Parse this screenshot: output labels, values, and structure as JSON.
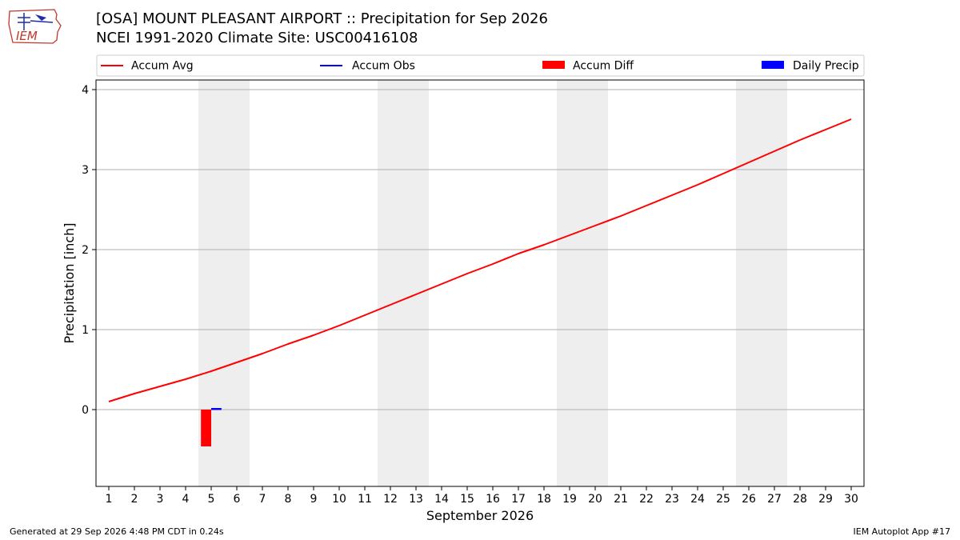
{
  "header": {
    "title_line1": "[OSA] MOUNT PLEASANT AIRPORT :: Precipitation for Sep 2026",
    "title_line2": "NCEI 1991-2020 Climate Site: USC00416108",
    "logo_text": "IEM"
  },
  "footer": {
    "generated": "Generated at 29 Sep 2026 4:48 PM CDT in 0.24s",
    "app": "IEM Autoplot App #17"
  },
  "colors": {
    "accum_avg": "#ff0000",
    "accum_obs": "#0000ff",
    "accum_diff": "#ff0000",
    "daily_precip": "#0000ff",
    "weekend_shade": "#eeeeee",
    "grid": "#b0b0b0",
    "logo": "#c0392b"
  },
  "chart_data": {
    "type": "line",
    "xlabel": "September 2026",
    "ylabel": "Precipitation [inch]",
    "x": [
      1,
      2,
      3,
      4,
      5,
      6,
      7,
      8,
      9,
      10,
      11,
      12,
      13,
      14,
      15,
      16,
      17,
      18,
      19,
      20,
      21,
      22,
      23,
      24,
      25,
      26,
      27,
      28,
      29,
      30
    ],
    "xlim": [
      0.5,
      30.5
    ],
    "ylim": [
      -0.96,
      4.12
    ],
    "yticks": [
      0,
      1,
      2,
      3,
      4
    ],
    "grid": true,
    "legend": {
      "placement": "top",
      "entries": [
        {
          "label": "Accum Avg",
          "kind": "line",
          "color": "#ff0000"
        },
        {
          "label": "Accum Obs",
          "kind": "line",
          "color": "#0000ff"
        },
        {
          "label": "Accum Diff",
          "kind": "bar",
          "color": "#ff0000"
        },
        {
          "label": "Daily Precip",
          "kind": "bar",
          "color": "#0000ff"
        }
      ]
    },
    "weekend_bands": [
      [
        4.5,
        6.5
      ],
      [
        11.5,
        13.5
      ],
      [
        18.5,
        20.5
      ],
      [
        25.5,
        27.5
      ]
    ],
    "series": [
      {
        "name": "Accum Avg",
        "kind": "line",
        "x": [
          1,
          2,
          3,
          4,
          5,
          6,
          7,
          8,
          9,
          10,
          11,
          12,
          13,
          14,
          15,
          16,
          17,
          18,
          19,
          20,
          21,
          22,
          23,
          24,
          25,
          26,
          27,
          28,
          29,
          30
        ],
        "values": [
          0.1,
          0.2,
          0.29,
          0.38,
          0.48,
          0.59,
          0.7,
          0.82,
          0.93,
          1.05,
          1.18,
          1.31,
          1.44,
          1.57,
          1.7,
          1.82,
          1.95,
          2.06,
          2.18,
          2.3,
          2.42,
          2.55,
          2.68,
          2.81,
          2.95,
          3.09,
          3.23,
          3.37,
          3.5,
          3.63
        ]
      },
      {
        "name": "Accum Obs",
        "kind": "line",
        "x": [
          5.0,
          5.4
        ],
        "values": [
          0.01,
          0.01
        ]
      },
      {
        "name": "Accum Diff",
        "kind": "bar",
        "x": [
          4.8
        ],
        "values": [
          -0.46
        ]
      },
      {
        "name": "Daily Precip",
        "kind": "bar",
        "x": [
          5.2
        ],
        "values": [
          0.0
        ]
      }
    ]
  }
}
